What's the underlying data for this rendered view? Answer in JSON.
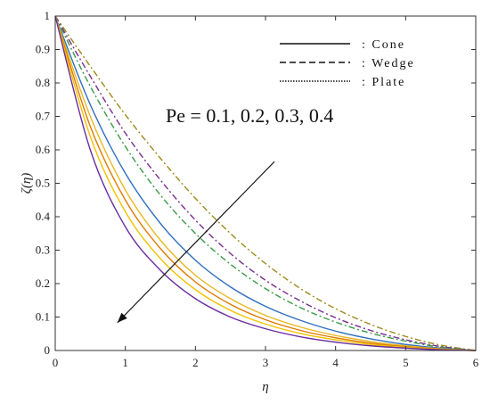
{
  "chart_data": {
    "type": "line",
    "title": "",
    "xlabel": "η",
    "ylabel": "ζ(η)",
    "xlim": [
      0,
      6
    ],
    "ylim": [
      0,
      1
    ],
    "xticks": [
      "0",
      "1",
      "2",
      "3",
      "4",
      "5",
      "6"
    ],
    "yticks": [
      "0",
      "0.1",
      "0.2",
      "0.3",
      "0.4",
      "0.5",
      "0.6",
      "0.7",
      "0.8",
      "0.9",
      "1"
    ],
    "grid": false,
    "legend_position": "top-right",
    "legend": [
      {
        "label": ": Cone",
        "style": "solid"
      },
      {
        "label": ": Wedge",
        "style": "dashed"
      },
      {
        "label": ": Plate",
        "style": "dotted"
      }
    ],
    "annotation": {
      "text": "Pe = 0.1, 0.2, 0.3, 0.4",
      "arrow_from": [
        3.0,
        0.57
      ],
      "arrow_to": [
        0.9,
        0.11
      ]
    },
    "colors": [
      "#9c8a1a",
      "#7a2d8f",
      "#3a9a45",
      "#2f6fc0",
      "#e8b923",
      "#e07b00",
      "#f2c200",
      "#6a2ca0"
    ],
    "series": [
      {
        "style": "dashdot",
        "color": "#9c8a1a",
        "x": [
          0,
          0.5,
          1,
          1.5,
          2,
          2.5,
          3,
          3.5,
          4,
          4.5,
          5,
          5.5,
          6
        ],
        "y": [
          1,
          0.85,
          0.705,
          0.575,
          0.455,
          0.35,
          0.26,
          0.185,
          0.125,
          0.078,
          0.042,
          0.016,
          0
        ]
      },
      {
        "style": "dashdot",
        "color": "#7a2d8f",
        "x": [
          0,
          0.5,
          1,
          1.5,
          2,
          2.5,
          3,
          3.5,
          4,
          4.5,
          5,
          5.5,
          6
        ],
        "y": [
          1,
          0.82,
          0.65,
          0.51,
          0.39,
          0.29,
          0.21,
          0.148,
          0.098,
          0.06,
          0.032,
          0.012,
          0
        ]
      },
      {
        "style": "dashdot",
        "color": "#3a9a45",
        "x": [
          0,
          0.5,
          1,
          1.5,
          2,
          2.5,
          3,
          3.5,
          4,
          4.5,
          5,
          5.5,
          6
        ],
        "y": [
          1,
          0.79,
          0.61,
          0.465,
          0.35,
          0.258,
          0.185,
          0.128,
          0.085,
          0.052,
          0.028,
          0.01,
          0
        ]
      },
      {
        "style": "solid",
        "color": "#2f6fc0",
        "x": [
          0,
          0.5,
          1,
          1.5,
          2,
          2.5,
          3,
          3.5,
          4,
          4.5,
          5,
          5.5,
          6
        ],
        "y": [
          1,
          0.735,
          0.53,
          0.38,
          0.27,
          0.19,
          0.132,
          0.09,
          0.058,
          0.035,
          0.018,
          0.007,
          0
        ]
      },
      {
        "style": "solid",
        "color": "#e8b923",
        "x": [
          0,
          0.5,
          1,
          1.5,
          2,
          2.5,
          3,
          3.5,
          4,
          4.5,
          5,
          5.5,
          6
        ],
        "y": [
          1,
          0.7,
          0.48,
          0.33,
          0.225,
          0.155,
          0.105,
          0.07,
          0.045,
          0.027,
          0.014,
          0.005,
          0
        ]
      },
      {
        "style": "solid",
        "color": "#e07b00",
        "x": [
          0,
          0.5,
          1,
          1.5,
          2,
          2.5,
          3,
          3.5,
          4,
          4.5,
          5,
          5.5,
          6
        ],
        "y": [
          1,
          0.67,
          0.45,
          0.305,
          0.205,
          0.138,
          0.092,
          0.06,
          0.038,
          0.022,
          0.011,
          0.004,
          0
        ]
      },
      {
        "style": "solid",
        "color": "#f2c200",
        "x": [
          0,
          0.5,
          1,
          1.5,
          2,
          2.5,
          3,
          3.5,
          4,
          4.5,
          5,
          5.5,
          6
        ],
        "y": [
          1,
          0.64,
          0.415,
          0.275,
          0.182,
          0.12,
          0.079,
          0.051,
          0.032,
          0.018,
          0.009,
          0.003,
          0
        ]
      },
      {
        "style": "solid",
        "color": "#6a2ca0",
        "x": [
          0,
          0.5,
          1,
          1.5,
          2,
          2.5,
          3,
          3.5,
          4,
          4.5,
          5,
          5.5,
          6
        ],
        "y": [
          1,
          0.6,
          0.37,
          0.24,
          0.155,
          0.1,
          0.065,
          0.041,
          0.025,
          0.014,
          0.007,
          0.002,
          0
        ]
      }
    ]
  }
}
